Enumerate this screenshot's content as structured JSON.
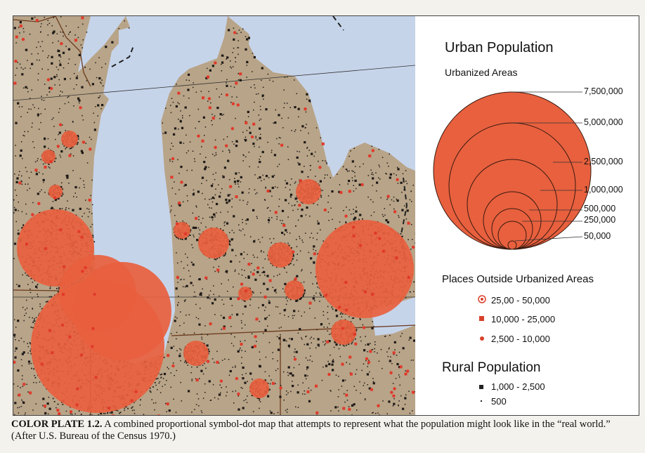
{
  "legend": {
    "urban_title": "Urban Population",
    "urban_subtitle": "Urbanized Areas",
    "circle_sizes": [
      "7,500,000",
      "5,000,000",
      "2,500,000",
      "1,000,000",
      "500,000",
      "250,000",
      "50,000"
    ],
    "outside_title": "Places Outside Urbanized Areas",
    "outside_items": [
      "25,00 - 50,000",
      "10,000 - 25,000",
      "2,500 - 10,000"
    ],
    "rural_title": "Rural Population",
    "rural_items": [
      "1,000 - 2,500",
      "500"
    ]
  },
  "caption": {
    "label": "COLOR PLATE 1.2.",
    "text": " A combined proportional symbol-dot map that attempts to represent what the population might look like in the “real world.” (After U.S. Bureau of the Census 1970.)"
  },
  "colors": {
    "land": "#b8a488",
    "water": "#c6d4ea",
    "urban_circle": "#e8603e",
    "dot": "#1e1a18",
    "border": "#6b3a1e"
  }
}
